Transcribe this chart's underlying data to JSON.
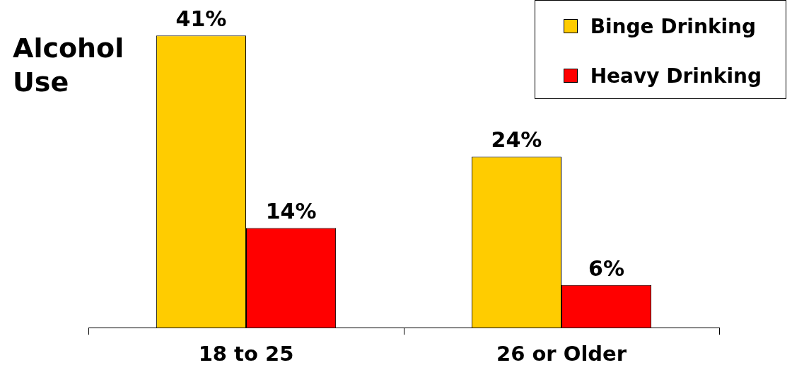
{
  "chart_data": {
    "type": "bar",
    "title": "Alcohol Use",
    "categories": [
      "18 to 25",
      "26 or Older"
    ],
    "series": [
      {
        "name": "Binge Drinking",
        "color": "#ffcc00",
        "values": [
          41,
          24
        ],
        "value_labels": [
          "41%",
          "24%"
        ]
      },
      {
        "name": "Heavy Drinking",
        "color": "#ff0000",
        "values": [
          14,
          6
        ],
        "value_labels": [
          "14%",
          "6%"
        ]
      }
    ],
    "legend": "top right",
    "grid": false
  }
}
